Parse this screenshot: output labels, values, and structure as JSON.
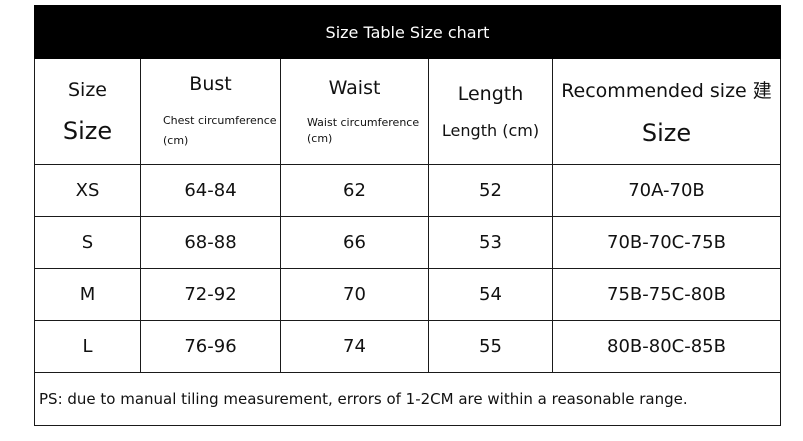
{
  "title": "Size Table Size chart",
  "columns": [
    {
      "main": "Size",
      "sub": "Size"
    },
    {
      "main": "Bust",
      "sub": "Chest circumference\n(cm)"
    },
    {
      "main": "Waist",
      "sub": "Waist circumference\n(cm)"
    },
    {
      "main": "Length",
      "sub": "Length (cm)"
    },
    {
      "main": "Recommended size 建",
      "sub": "Size"
    }
  ],
  "rows": [
    [
      "XS",
      "64-84",
      "62",
      "52",
      "70A-70B"
    ],
    [
      "S",
      "68-88",
      "66",
      "53",
      "70B-70C-75B"
    ],
    [
      "M",
      "72-92",
      "70",
      "54",
      "75B-75C-80B"
    ],
    [
      "L",
      "76-96",
      "74",
      "55",
      "80B-80C-85B"
    ]
  ],
  "note": "PS: due to manual tiling measurement, errors of 1-2CM are within a reasonable range."
}
